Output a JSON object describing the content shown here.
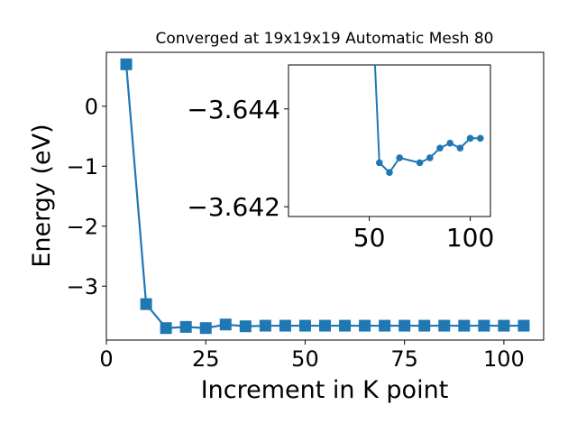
{
  "chart_data": [
    {
      "type": "line",
      "title": "Converged at 19x19x19 Automatic Mesh 80",
      "xlabel": "Increment in K point",
      "ylabel": "Energy (eV)",
      "xlim": [
        0,
        110
      ],
      "ylim": [
        -3.9,
        0.9
      ],
      "xticks": [
        0,
        25,
        50,
        75,
        100
      ],
      "yticks": [
        0,
        -1,
        -2,
        -3
      ],
      "xtick_labels": [
        "0",
        "25",
        "50",
        "75",
        "100"
      ],
      "ytick_labels": [
        "0",
        "−1",
        "−2",
        "−3"
      ],
      "grid": false,
      "marker": "square",
      "color": "#1f77b4",
      "series": [
        {
          "x": [
            5,
            10,
            15,
            20,
            25,
            30,
            35,
            40,
            45,
            50,
            55,
            60,
            65,
            70,
            75,
            80,
            85,
            90,
            95,
            100,
            105
          ],
          "values": [
            0.7,
            -3.3,
            -3.7,
            -3.68,
            -3.7,
            -3.64,
            -3.67,
            -3.66,
            -3.66,
            -3.66,
            -3.66,
            -3.66,
            -3.66,
            -3.66,
            -3.66,
            -3.66,
            -3.66,
            -3.66,
            -3.66,
            -3.66,
            -3.66
          ]
        }
      ]
    },
    {
      "type": "line",
      "role": "inset",
      "xlim": [
        10,
        110
      ],
      "ylim": [
        -3.6418,
        -3.6449
      ],
      "xticks": [
        50,
        100
      ],
      "yticks": [
        -3.644,
        -3.642
      ],
      "xtick_labels": [
        "50",
        "100"
      ],
      "ytick_labels": [
        "−3.644",
        "−3.642"
      ],
      "grid": false,
      "marker": "circle",
      "color": "#1f77b4",
      "series": [
        {
          "x": [
            50,
            55,
            60,
            65,
            75,
            80,
            85,
            90,
            95,
            100,
            105
          ],
          "values": [
            -3.6475,
            -3.6429,
            -3.6427,
            -3.643,
            -3.6429,
            -3.643,
            -3.6432,
            -3.6433,
            -3.6432,
            -3.6434,
            -3.6434
          ]
        }
      ]
    }
  ]
}
